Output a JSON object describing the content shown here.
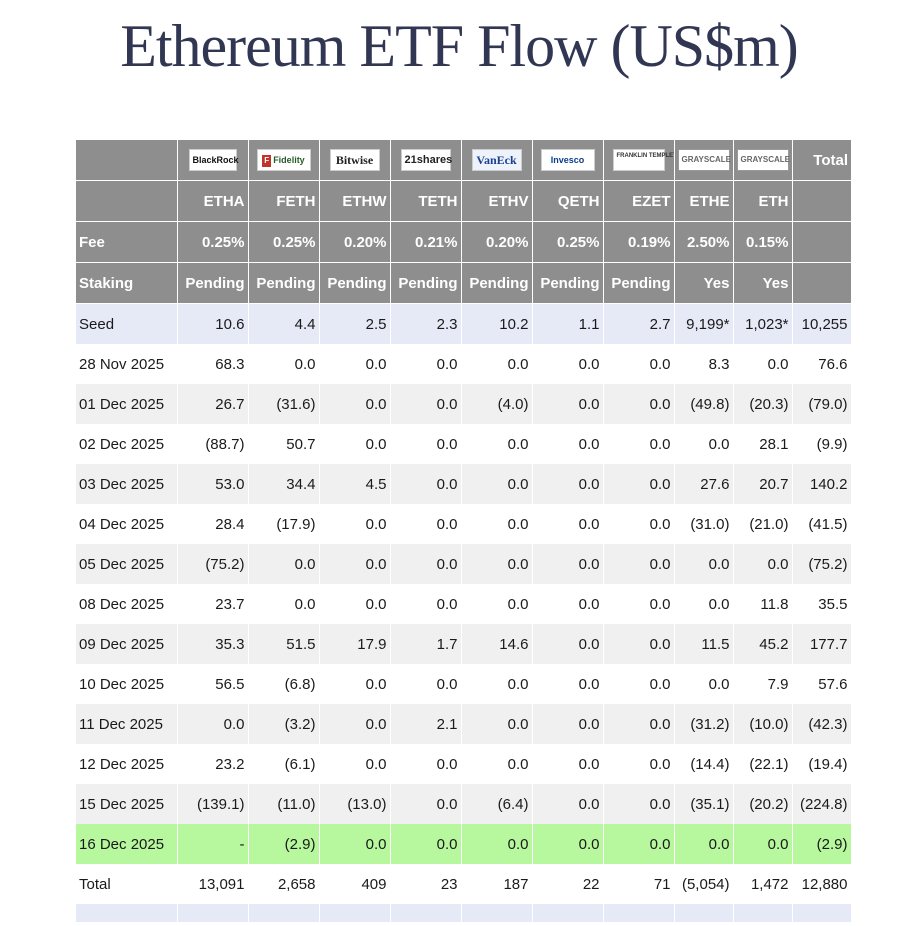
{
  "title": "Ethereum ETF Flow (US$m)",
  "logos": [
    {
      "name": "blackrock",
      "text": "BlackRock"
    },
    {
      "name": "fidelity",
      "text": "Fidelity"
    },
    {
      "name": "bitwise",
      "text": "Bitwise"
    },
    {
      "name": "21shares",
      "text": "21shares"
    },
    {
      "name": "vaneck",
      "text": "VanEck"
    },
    {
      "name": "invesco",
      "text": "Invesco"
    },
    {
      "name": "franklin-templeton",
      "text": "FRANKLIN TEMPLETON"
    },
    {
      "name": "grayscale",
      "text": "GRAYSCALE"
    },
    {
      "name": "grayscale",
      "text": "GRAYSCALE"
    }
  ],
  "total_header": "Total",
  "tickers": [
    "ETHA",
    "FETH",
    "ETHW",
    "TETH",
    "ETHV",
    "QETH",
    "EZET",
    "ETHE",
    "ETH"
  ],
  "fee_label": "Fee",
  "fees": [
    "0.25%",
    "0.25%",
    "0.20%",
    "0.21%",
    "0.20%",
    "0.25%",
    "0.19%",
    "2.50%",
    "0.15%"
  ],
  "staking_label": "Staking",
  "staking": [
    "Pending",
    "Pending",
    "Pending",
    "Pending",
    "Pending",
    "Pending",
    "Pending",
    "Yes",
    "Yes"
  ],
  "rows": [
    {
      "label": "Seed",
      "values": [
        "10.6",
        "4.4",
        "2.5",
        "2.3",
        "10.2",
        "1.1",
        "2.7",
        "9,199*",
        "1,023*",
        "10,255"
      ],
      "style": "seed"
    },
    {
      "label": "28 Nov 2025",
      "values": [
        "68.3",
        "0.0",
        "0.0",
        "0.0",
        "0.0",
        "0.0",
        "0.0",
        "8.3",
        "0.0",
        "76.6"
      ],
      "style": "even"
    },
    {
      "label": "01 Dec 2025",
      "values": [
        "26.7",
        "(31.6)",
        "0.0",
        "0.0",
        "(4.0)",
        "0.0",
        "0.0",
        "(49.8)",
        "(20.3)",
        "(79.0)"
      ],
      "style": "odd"
    },
    {
      "label": "02 Dec 2025",
      "values": [
        "(88.7)",
        "50.7",
        "0.0",
        "0.0",
        "0.0",
        "0.0",
        "0.0",
        "0.0",
        "28.1",
        "(9.9)"
      ],
      "style": "even"
    },
    {
      "label": "03 Dec 2025",
      "values": [
        "53.0",
        "34.4",
        "4.5",
        "0.0",
        "0.0",
        "0.0",
        "0.0",
        "27.6",
        "20.7",
        "140.2"
      ],
      "style": "odd"
    },
    {
      "label": "04 Dec 2025",
      "values": [
        "28.4",
        "(17.9)",
        "0.0",
        "0.0",
        "0.0",
        "0.0",
        "0.0",
        "(31.0)",
        "(21.0)",
        "(41.5)"
      ],
      "style": "even"
    },
    {
      "label": "05 Dec 2025",
      "values": [
        "(75.2)",
        "0.0",
        "0.0",
        "0.0",
        "0.0",
        "0.0",
        "0.0",
        "0.0",
        "0.0",
        "(75.2)"
      ],
      "style": "odd"
    },
    {
      "label": "08 Dec 2025",
      "values": [
        "23.7",
        "0.0",
        "0.0",
        "0.0",
        "0.0",
        "0.0",
        "0.0",
        "0.0",
        "11.8",
        "35.5"
      ],
      "style": "even"
    },
    {
      "label": "09 Dec 2025",
      "values": [
        "35.3",
        "51.5",
        "17.9",
        "1.7",
        "14.6",
        "0.0",
        "0.0",
        "11.5",
        "45.2",
        "177.7"
      ],
      "style": "odd"
    },
    {
      "label": "10 Dec 2025",
      "values": [
        "56.5",
        "(6.8)",
        "0.0",
        "0.0",
        "0.0",
        "0.0",
        "0.0",
        "0.0",
        "7.9",
        "57.6"
      ],
      "style": "even"
    },
    {
      "label": "11 Dec 2025",
      "values": [
        "0.0",
        "(3.2)",
        "0.0",
        "2.1",
        "0.0",
        "0.0",
        "0.0",
        "(31.2)",
        "(10.0)",
        "(42.3)"
      ],
      "style": "odd"
    },
    {
      "label": "12 Dec 2025",
      "values": [
        "23.2",
        "(6.1)",
        "0.0",
        "0.0",
        "0.0",
        "0.0",
        "0.0",
        "(14.4)",
        "(22.1)",
        "(19.4)"
      ],
      "style": "even"
    },
    {
      "label": "15 Dec 2025",
      "values": [
        "(139.1)",
        "(11.0)",
        "(13.0)",
        "0.0",
        "(6.4)",
        "0.0",
        "0.0",
        "(35.1)",
        "(20.2)",
        "(224.8)"
      ],
      "style": "odd"
    },
    {
      "label": "16 Dec 2025",
      "values": [
        "-",
        "(2.9)",
        "0.0",
        "0.0",
        "0.0",
        "0.0",
        "0.0",
        "0.0",
        "0.0",
        "(2.9)"
      ],
      "style": "highlight"
    },
    {
      "label": "Total",
      "values": [
        "13,091",
        "2,658",
        "409",
        "23",
        "187",
        "22",
        "71",
        "(5,054)",
        "1,472",
        "12,880"
      ],
      "style": "total"
    }
  ],
  "colors": {
    "header_bg": "#8e8e8e",
    "negative": "#e0412c",
    "highlight": "#b7f79d",
    "seed_bg": "#e6e9f6",
    "title": "#313652"
  }
}
